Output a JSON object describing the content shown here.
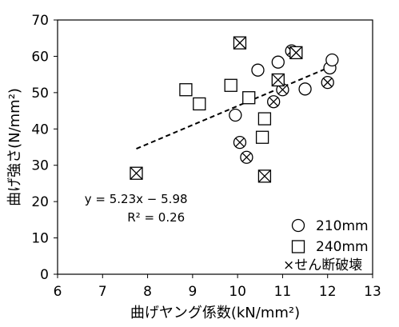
{
  "chart_data": {
    "type": "scatter",
    "xlabel": "曲げヤング係数(kN/mm²)",
    "ylabel": "曲げ強さ(N/mm²)",
    "xlim": [
      6,
      13
    ],
    "ylim": [
      0,
      70
    ],
    "xticks": [
      6,
      7,
      8,
      9,
      10,
      11,
      12,
      13
    ],
    "yticks": [
      0,
      10,
      20,
      30,
      40,
      50,
      60,
      70
    ],
    "grid": false,
    "legend_position": "bottom-right",
    "series": [
      {
        "name": "210mm",
        "marker": "circle",
        "points": [
          {
            "x": 9.95,
            "y": 43.8,
            "shear": false
          },
          {
            "x": 10.05,
            "y": 36.3,
            "shear": true
          },
          {
            "x": 10.2,
            "y": 32.2,
            "shear": true
          },
          {
            "x": 10.45,
            "y": 56.2,
            "shear": false
          },
          {
            "x": 10.8,
            "y": 47.5,
            "shear": true
          },
          {
            "x": 10.9,
            "y": 58.4,
            "shear": false
          },
          {
            "x": 11.0,
            "y": 50.8,
            "shear": true
          },
          {
            "x": 11.2,
            "y": 61.5,
            "shear": true
          },
          {
            "x": 11.5,
            "y": 51.0,
            "shear": false
          },
          {
            "x": 12.0,
            "y": 52.8,
            "shear": true
          },
          {
            "x": 12.05,
            "y": 56.8,
            "shear": false
          },
          {
            "x": 12.1,
            "y": 59.0,
            "shear": false
          }
        ]
      },
      {
        "name": "240mm",
        "marker": "square",
        "points": [
          {
            "x": 7.75,
            "y": 27.8,
            "shear": true
          },
          {
            "x": 8.85,
            "y": 50.8,
            "shear": false
          },
          {
            "x": 9.15,
            "y": 46.9,
            "shear": false
          },
          {
            "x": 9.85,
            "y": 52.0,
            "shear": false
          },
          {
            "x": 10.05,
            "y": 63.7,
            "shear": true
          },
          {
            "x": 10.25,
            "y": 48.6,
            "shear": false
          },
          {
            "x": 10.55,
            "y": 37.7,
            "shear": false
          },
          {
            "x": 10.6,
            "y": 27.0,
            "shear": true
          },
          {
            "x": 10.6,
            "y": 42.8,
            "shear": false
          },
          {
            "x": 10.9,
            "y": 53.5,
            "shear": true
          },
          {
            "x": 11.3,
            "y": 61.0,
            "shear": true
          }
        ]
      }
    ],
    "shear_marker_label": "×せん断破壊",
    "trendline": {
      "style": "dashed",
      "slope": 5.23,
      "intercept": -5.98,
      "x_range": [
        7.75,
        12.1
      ],
      "equation": "y = 5.23x − 5.98",
      "r2_label": "R² = 0.26"
    }
  }
}
